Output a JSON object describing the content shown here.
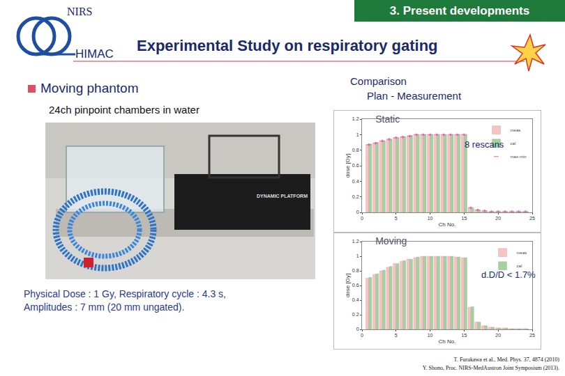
{
  "slide": {
    "header": {
      "org": "NIRS",
      "sub": "HIMAC",
      "title": "Experimental Study on  respiratory gating",
      "section": "3. Present developments"
    },
    "bullet": "Moving phantom",
    "sub_bullet": "24ch pinpoint chambers in water",
    "photo_label": "DYNAMIC PLATFORM",
    "comparison": [
      "Comparison",
      "Plan - Measurement"
    ],
    "conditions": [
      "Physical Dose : 1 Gy,  Respiratory cycle : 4.3 s,",
      "Amplitudes : 7 mm  (20 mm ungated)."
    ],
    "references": [
      "T. Furukawa et al., Med. Phys. 37, 4874 (2010)",
      "Y. Shono, Proc. NIRS-MedAustron Joint Symposium (2013)."
    ]
  },
  "chart_data": [
    {
      "type": "bar",
      "title": "Static",
      "xlabel": "Ch No.",
      "ylabel": "dose [Gy]",
      "x": [
        1,
        2,
        3,
        4,
        5,
        6,
        7,
        8,
        9,
        10,
        11,
        12,
        13,
        14,
        15,
        16,
        17,
        18,
        19,
        20,
        21,
        22,
        23,
        24
      ],
      "series": [
        {
          "name": "meas",
          "color": "#f4c4c4",
          "values": [
            0.87,
            0.89,
            0.92,
            0.94,
            0.96,
            0.97,
            0.98,
            1.0,
            1.0,
            1.0,
            1.0,
            1.0,
            1.0,
            1.0,
            1.0,
            0.06,
            0.03,
            0.02,
            0.01,
            0.01,
            0.01,
            0.01,
            0.01,
            0.01
          ]
        },
        {
          "name": "cal",
          "color": "#9fd39f",
          "values": [
            0.88,
            0.9,
            0.92,
            0.94,
            0.96,
            0.97,
            0.99,
            1.0,
            1.0,
            1.0,
            1.0,
            1.0,
            1.0,
            1.0,
            1.0,
            0.05,
            0.03,
            0.02,
            0.01,
            0.01,
            0.01,
            0.01,
            0.01,
            0.01
          ]
        },
        {
          "name": "max-min",
          "type": "error",
          "color": "#e060a0",
          "marker": "dash",
          "values": [
            0.01,
            0.01,
            0.01,
            0.01,
            0.01,
            0.01,
            0.01,
            0.01,
            0.01,
            0.01,
            0.01,
            0.01,
            0.01,
            0.01,
            0.01,
            0.01,
            0.01,
            0.01,
            0.01,
            0.01,
            0.01,
            0.01,
            0.01,
            0.01
          ]
        }
      ],
      "xlim": [
        0,
        25
      ],
      "xticks": [
        0,
        5,
        10,
        15,
        20,
        25
      ],
      "ylim": [
        0,
        1.2
      ],
      "yticks": [
        0,
        0.2,
        0.4,
        0.6,
        0.8,
        1,
        1.2
      ],
      "legend": "top right",
      "annotations": [
        "8 rescans"
      ]
    },
    {
      "type": "bar",
      "title": "Moving",
      "xlabel": "Ch No.",
      "ylabel": "dose [Gy]",
      "x": [
        1,
        2,
        3,
        4,
        5,
        6,
        7,
        8,
        9,
        10,
        11,
        12,
        13,
        14,
        15,
        16,
        17,
        18,
        19,
        20,
        21,
        22,
        23,
        24
      ],
      "series": [
        {
          "name": "meas",
          "color": "#f4c4c4",
          "values": [
            0.7,
            0.75,
            0.8,
            0.85,
            0.9,
            0.93,
            0.96,
            0.98,
            1.0,
            1.0,
            1.0,
            1.0,
            1.0,
            0.99,
            0.98,
            0.3,
            0.1,
            0.05,
            0.03,
            0.02,
            0.02,
            0.01,
            0.01,
            0.01
          ]
        },
        {
          "name": "cal",
          "color": "#9fd39f",
          "values": [
            0.71,
            0.76,
            0.81,
            0.86,
            0.9,
            0.94,
            0.96,
            0.99,
            1.0,
            1.0,
            1.0,
            1.0,
            1.0,
            0.99,
            0.98,
            0.31,
            0.1,
            0.05,
            0.03,
            0.02,
            0.02,
            0.01,
            0.01,
            0.01
          ]
        }
      ],
      "xlim": [
        0,
        25
      ],
      "xticks": [
        0,
        5,
        10,
        15,
        20,
        25
      ],
      "ylim": [
        0,
        1.2
      ],
      "yticks": [
        0,
        0.2,
        0.4,
        0.6,
        0.8,
        1,
        1.2
      ],
      "legend": "top right",
      "annotations": [
        "d.D/D < 1.7%"
      ]
    }
  ]
}
